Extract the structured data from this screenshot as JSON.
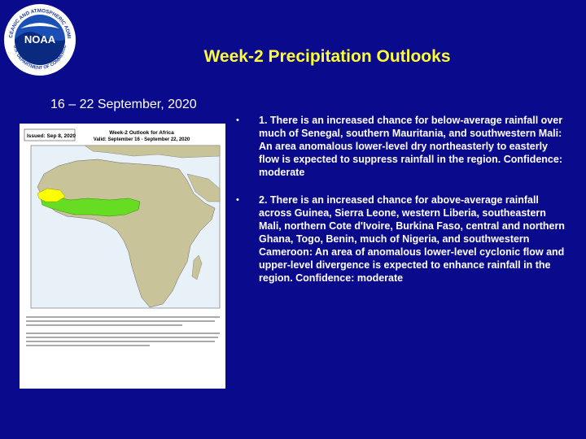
{
  "logo": {
    "ring_text": "NATIONAL OCEANIC AND ATMOSPHERIC ADMINISTRATION",
    "ring_text_bottom": "U.S. DEPARTMENT OF COMMERCE",
    "center_text": "NOAA"
  },
  "title": "Week-2 Precipitation Outlooks",
  "date_range": "16 – 22 September, 2020",
  "map": {
    "issued": "Issued: Sep 8, 2020",
    "heading_line1": "Week-2 Outlook for Africa",
    "heading_line2": "Valid: September 16 - September 22, 2020"
  },
  "bullets": [
    {
      "marker": "•",
      "text": "1. There is an increased chance for below-average rainfall over much of Senegal, southern Mauritania, and southwestern Mali: An area anomalous lower-level dry northeasterly to easterly flow is expected to suppress rainfall in the region. Confidence: moderate"
    },
    {
      "marker": "•",
      "text": "2. There is an increased chance for above-average rainfall across Guinea, Sierra Leone, western Liberia, southeastern Mali, northern Cote d'Ivoire, Burkina Faso, central and northern Ghana, Togo, Benin, much of Nigeria, and southwestern Cameroon: An area of anomalous lower-level cyclonic flow and upper-level divergence is expected to enhance rainfall in the region. Confidence: moderate"
    }
  ],
  "colors": {
    "background": "#0a0a8c",
    "title": "#ffff33",
    "below_average_area": "#ffff00",
    "above_average_area": "#66dd22"
  }
}
